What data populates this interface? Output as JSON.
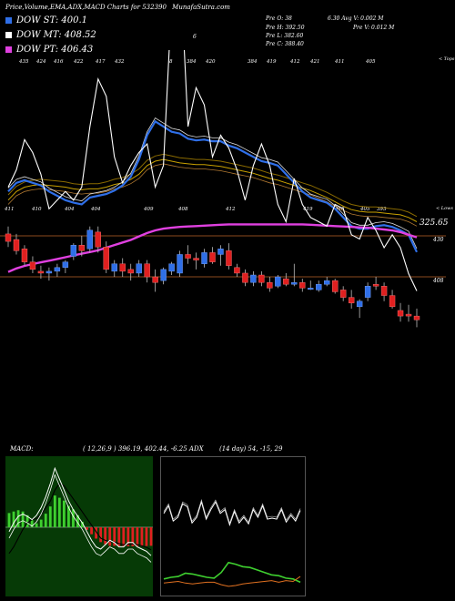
{
  "header": {
    "title": "Price,Volume,EMA,ADX,MACD Charts for 532390",
    "site": "MunafaSutra.com"
  },
  "legend": [
    {
      "label": "DOW ST: 400.1",
      "color": "#2f6fe8"
    },
    {
      "label": "DOW MT: 408.52",
      "color": "#ffffff"
    },
    {
      "label": "DOW PT: 406.43",
      "color": "#e040e0"
    }
  ],
  "stats": {
    "pre_o": "Pre  O: 38",
    "pre_h": "Pre  H: 392.50",
    "pre_l": "Pre  L: 382.60",
    "pre_c": "Pre  C: 388.40",
    "avg_v": "6.30   Avg V: 0.002  M",
    "pre_v": "Pre  V: 0.012  M"
  },
  "marker": "6",
  "price_labels": {
    "high_line": "325.65",
    "level_1": "430",
    "level_2": "408",
    "tops": "< Tops",
    "lows": "< Lows"
  },
  "top_ticks": [
    "435",
    "424",
    "416",
    "422",
    "417",
    "432",
    "8",
    "384",
    "420",
    "384",
    "419",
    "412",
    "421",
    "411",
    "405"
  ],
  "bottom_ticks": [
    "411",
    "410",
    "404",
    "404",
    "409",
    "408",
    "412",
    "419",
    "418",
    "405",
    "393"
  ],
  "indicator_labels": {
    "macd": "MACD:",
    "macd_values": "( 12,26,9 ) 396.19, 402.44, -6.25 ADX",
    "adx_values": "(14  day) 54, -15, 29"
  },
  "colors": {
    "up": "#2f6fe8",
    "down": "#e02020",
    "ema_fast": "#2f6fe8",
    "ema_slow": "#c8a000",
    "ema_long": "#e040e0"
  },
  "chart_data": {
    "type": "line",
    "title": "Price,Volume,EMA,ADX,MACD Charts for 532390",
    "candles": [
      {
        "o": 432,
        "h": 436,
        "l": 425,
        "c": 428
      },
      {
        "o": 429,
        "h": 432,
        "l": 421,
        "c": 423
      },
      {
        "o": 424,
        "h": 426,
        "l": 415,
        "c": 417
      },
      {
        "o": 417,
        "h": 420,
        "l": 411,
        "c": 413
      },
      {
        "o": 412,
        "h": 415,
        "l": 408,
        "c": 411
      },
      {
        "o": 411,
        "h": 414,
        "l": 407,
        "c": 412
      },
      {
        "o": 412,
        "h": 416,
        "l": 409,
        "c": 414
      },
      {
        "o": 414,
        "h": 418,
        "l": 411,
        "c": 417
      },
      {
        "o": 420,
        "h": 427,
        "l": 418,
        "c": 426
      },
      {
        "o": 426,
        "h": 431,
        "l": 420,
        "c": 423
      },
      {
        "o": 424,
        "h": 436,
        "l": 422,
        "c": 434
      },
      {
        "o": 433,
        "h": 436,
        "l": 422,
        "c": 425
      },
      {
        "o": 425,
        "h": 428,
        "l": 411,
        "c": 413
      },
      {
        "o": 412,
        "h": 418,
        "l": 409,
        "c": 416
      },
      {
        "o": 416,
        "h": 419,
        "l": 409,
        "c": 412
      },
      {
        "o": 413,
        "h": 416,
        "l": 407,
        "c": 411
      },
      {
        "o": 411,
        "h": 418,
        "l": 409,
        "c": 416
      },
      {
        "o": 416,
        "h": 418,
        "l": 406,
        "c": 409
      },
      {
        "o": 409,
        "h": 413,
        "l": 401,
        "c": 406
      },
      {
        "o": 407,
        "h": 414,
        "l": 405,
        "c": 413
      },
      {
        "o": 412,
        "h": 417,
        "l": 410,
        "c": 416
      },
      {
        "o": 411,
        "h": 423,
        "l": 409,
        "c": 421
      },
      {
        "o": 421,
        "h": 426,
        "l": 416,
        "c": 419
      },
      {
        "o": 419,
        "h": 422,
        "l": 413,
        "c": 418
      },
      {
        "o": 416,
        "h": 424,
        "l": 414,
        "c": 422
      },
      {
        "o": 422,
        "h": 425,
        "l": 416,
        "c": 417
      },
      {
        "o": 421,
        "h": 426,
        "l": 415,
        "c": 424
      },
      {
        "o": 423,
        "h": 427,
        "l": 413,
        "c": 415
      },
      {
        "o": 414,
        "h": 416,
        "l": 409,
        "c": 411
      },
      {
        "o": 411,
        "h": 413,
        "l": 404,
        "c": 406
      },
      {
        "o": 406,
        "h": 412,
        "l": 404,
        "c": 410
      },
      {
        "o": 410,
        "h": 412,
        "l": 404,
        "c": 406
      },
      {
        "o": 406,
        "h": 409,
        "l": 401,
        "c": 403
      },
      {
        "o": 404,
        "h": 410,
        "l": 403,
        "c": 409
      },
      {
        "o": 408,
        "h": 411,
        "l": 404,
        "c": 405
      },
      {
        "o": 405,
        "h": 416,
        "l": 404,
        "c": 406
      },
      {
        "o": 406,
        "h": 408,
        "l": 401,
        "c": 403
      },
      {
        "o": 403,
        "h": 407,
        "l": 402,
        "c": 403
      },
      {
        "o": 402,
        "h": 407,
        "l": 401,
        "c": 405
      },
      {
        "o": 405,
        "h": 409,
        "l": 404,
        "c": 407
      },
      {
        "o": 407,
        "h": 408,
        "l": 400,
        "c": 401
      },
      {
        "o": 402,
        "h": 404,
        "l": 396,
        "c": 398
      },
      {
        "o": 398,
        "h": 402,
        "l": 392,
        "c": 395
      },
      {
        "o": 393,
        "h": 397,
        "l": 387,
        "c": 396
      },
      {
        "o": 398,
        "h": 406,
        "l": 396,
        "c": 404
      },
      {
        "o": 405,
        "h": 409,
        "l": 402,
        "c": 404
      },
      {
        "o": 404,
        "h": 406,
        "l": 396,
        "c": 399
      },
      {
        "o": 399,
        "h": 402,
        "l": 392,
        "c": 393
      },
      {
        "o": 391,
        "h": 395,
        "l": 385,
        "c": 388
      },
      {
        "o": 389,
        "h": 394,
        "l": 385,
        "c": 388
      },
      {
        "o": 388,
        "h": 392,
        "l": 382,
        "c": 386
      }
    ],
    "ema_fast": [
      412.5,
      413.5,
      413.8,
      413.5,
      413.2,
      412.5,
      412,
      411.5,
      411.2,
      411,
      411.8,
      412,
      412.2,
      412.6,
      413.2,
      414.2,
      416.2,
      419,
      420.6,
      420,
      419.4,
      419.2,
      418.6,
      418.4,
      418.5,
      418.3,
      418.3,
      417.8,
      417.5,
      417,
      416.5,
      416,
      415.8,
      415.5,
      414.5,
      413.5,
      412.5,
      411.8,
      411.5,
      411.2,
      410.5,
      409.5,
      408.5,
      408.2,
      408.2,
      408.5,
      408.6,
      408.4,
      408,
      407.5,
      405.5
    ],
    "ema_slow": [
      411.5,
      412.5,
      413,
      413.2,
      413.3,
      413.2,
      413.1,
      413,
      412.8,
      412.7,
      412.8,
      412.8,
      413,
      413.3,
      413.5,
      413.9,
      414.5,
      415.5,
      416,
      416.2,
      416,
      415.8,
      415.7,
      415.6,
      415.6,
      415.5,
      415.4,
      415.2,
      415,
      414.8,
      414.6,
      414.3,
      414,
      413.8,
      413.5,
      413.2,
      412.9,
      412.6,
      412.2,
      411.8,
      411.3,
      410.8,
      410.4,
      410.2,
      410.1,
      410.1,
      410,
      409.9,
      409.8,
      409.5,
      409
    ],
    "ema_long": [
      403.2,
      403.6,
      403.9,
      404.1,
      404.3,
      404.5,
      404.7,
      404.9,
      405.1,
      405.3,
      405.5,
      405.7,
      406,
      406.3,
      406.6,
      406.9,
      407.3,
      407.7,
      408,
      408.2,
      408.3,
      408.4,
      408.45,
      408.5,
      408.55,
      408.6,
      408.65,
      408.7,
      408.7,
      408.7,
      408.7,
      408.7,
      408.7,
      408.7,
      408.7,
      408.7,
      408.7,
      408.65,
      408.6,
      408.55,
      408.5,
      408.45,
      408.4,
      408.35,
      408.3,
      408.2,
      408.1,
      408,
      407.8,
      407.5,
      407.2
    ],
    "price_line": [
      413,
      415,
      418.5,
      417,
      414.5,
      410.5,
      411.5,
      412.5,
      411.5,
      413,
      420,
      425.5,
      423.5,
      416.5,
      413.5,
      415.5,
      417,
      418,
      413,
      415.5,
      434.5,
      439.5,
      420,
      424.5,
      422.5,
      416.5,
      419,
      417.5,
      415,
      411.5,
      415.5,
      418,
      415.5,
      411,
      409,
      414,
      411,
      409.5,
      409,
      408.5,
      411,
      410.5,
      407.5,
      407,
      409.5,
      408,
      406,
      407.5,
      406,
      403,
      401
    ],
    "macd_hist": [
      6.5,
      7.2,
      7.8,
      7.2,
      5.5,
      3.2,
      1.8,
      3.5,
      6.2,
      9.5,
      14.5,
      13.5,
      12.2,
      9.8,
      8.2,
      5.5,
      2.5,
      -1.2,
      -3.2,
      -5.2,
      -6.8,
      -7.8,
      -8.5,
      -8.5,
      -8.6,
      -8.6,
      -8.7,
      -8.7,
      -8.7,
      -8.7,
      -8.6,
      -8.5
    ],
    "macd_line": [
      -2,
      2,
      5,
      6,
      5,
      3.5,
      5.5,
      9,
      14,
      20,
      27,
      22,
      17,
      12,
      8,
      5,
      2,
      -2,
      -6,
      -9,
      -10,
      -8,
      -6,
      -7,
      -9,
      -9,
      -7,
      -7,
      -9,
      -10,
      -11,
      -13
    ],
    "signal_line": [
      -12,
      -9,
      -5,
      -1,
      2,
      3.5,
      4,
      6,
      9,
      12,
      17,
      20,
      19,
      16,
      13,
      10,
      7,
      4,
      1,
      -2,
      -5,
      -6,
      -6.5,
      -6.8,
      -7.5,
      -8,
      -7.8,
      -7.6,
      -8,
      -8.5,
      -9.2,
      -10.3
    ],
    "adx_plus": [
      18,
      20,
      21,
      25,
      24,
      22,
      20,
      19,
      26,
      38,
      36,
      33,
      32,
      29,
      26,
      23,
      22,
      19,
      18,
      14
    ],
    "adx_minus": [
      13,
      14,
      15,
      13,
      12,
      13,
      14,
      14,
      11,
      9,
      10,
      12,
      13,
      14,
      15,
      16,
      14,
      16,
      15,
      21
    ],
    "adx_line": [
      84,
      92,
      76,
      80,
      94,
      91,
      74,
      80,
      96,
      78,
      88,
      96,
      84,
      88,
      72,
      86,
      74,
      80,
      73,
      88,
      80,
      92,
      78,
      79,
      78,
      88,
      75,
      82,
      76,
      87
    ],
    "ylim": [
      325,
      440
    ]
  }
}
